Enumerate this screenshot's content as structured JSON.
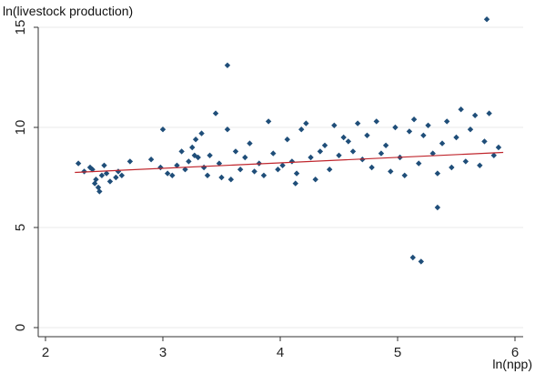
{
  "chart_data": {
    "type": "scatter",
    "ylabel": "ln(livestock production)",
    "xlabel": "ln(npp)",
    "xlim": [
      2,
      6
    ],
    "ylim": [
      0,
      16
    ],
    "x_ticks": [
      2,
      3,
      4,
      5,
      6
    ],
    "y_ticks": [
      0,
      5,
      10,
      15
    ],
    "x_tick_labels": [
      "2",
      "3",
      "4",
      "5",
      "6"
    ],
    "y_tick_labels": [
      "0",
      "5",
      "10",
      "15"
    ],
    "grid": "horizontal",
    "legend": "none",
    "colors": {
      "points": "#1f4e79",
      "fit_line": "#c0262d",
      "grid": "#e9e9e9"
    },
    "fit_line": {
      "x": [
        2.25,
        5.9
      ],
      "y": [
        7.75,
        8.75
      ]
    },
    "series": [
      {
        "marker": "diamond",
        "x": [
          2.28,
          2.33,
          2.38,
          2.4,
          2.42,
          2.43,
          2.45,
          2.46,
          2.48,
          2.5,
          2.52,
          2.55,
          2.6,
          2.62,
          2.65,
          2.72,
          2.9,
          3.0,
          3.04,
          3.08,
          3.12,
          3.16,
          3.19,
          3.22,
          3.25,
          3.28,
          3.3,
          3.33,
          3.35,
          3.38,
          3.4,
          3.45,
          3.48,
          3.5,
          3.55,
          3.58,
          3.62,
          3.66,
          3.7,
          3.74,
          3.78,
          3.82,
          3.86,
          3.9,
          3.94,
          3.98,
          4.02,
          4.06,
          4.1,
          4.14,
          4.18,
          4.22,
          4.26,
          4.3,
          4.34,
          4.38,
          4.42,
          4.46,
          4.5,
          4.54,
          4.58,
          4.62,
          4.66,
          4.7,
          4.74,
          4.78,
          4.82,
          4.86,
          4.9,
          4.94,
          4.98,
          5.02,
          5.06,
          5.1,
          5.14,
          5.18,
          5.22,
          5.26,
          5.3,
          5.34,
          5.38,
          5.42,
          5.46,
          5.5,
          5.54,
          5.58,
          5.62,
          5.66,
          5.7,
          5.74,
          5.78,
          5.82,
          5.86,
          3.55,
          5.76,
          5.13,
          5.2,
          5.34,
          3.27,
          4.13,
          2.98
        ],
        "y": [
          8.2,
          7.8,
          8.0,
          7.9,
          7.2,
          7.4,
          7.0,
          6.8,
          7.6,
          8.1,
          7.7,
          7.3,
          7.5,
          7.8,
          7.6,
          8.3,
          8.4,
          9.9,
          7.7,
          7.6,
          8.1,
          8.8,
          7.9,
          8.3,
          9.0,
          9.4,
          8.5,
          9.7,
          8.0,
          7.6,
          8.6,
          10.7,
          8.2,
          7.5,
          9.9,
          7.4,
          8.8,
          7.9,
          8.5,
          9.2,
          7.8,
          8.2,
          7.6,
          10.3,
          8.7,
          7.9,
          8.1,
          9.4,
          8.3,
          7.7,
          9.9,
          10.2,
          8.5,
          7.4,
          8.8,
          9.1,
          7.9,
          10.1,
          8.6,
          9.5,
          9.3,
          8.8,
          10.2,
          8.4,
          9.6,
          8.0,
          10.3,
          8.7,
          9.1,
          7.8,
          10.0,
          8.5,
          7.6,
          9.8,
          10.4,
          8.2,
          9.6,
          10.1,
          8.7,
          7.7,
          9.2,
          10.3,
          8.0,
          9.5,
          10.9,
          8.3,
          9.9,
          10.6,
          8.1,
          9.3,
          10.7,
          8.6,
          9.0,
          13.1,
          15.4,
          3.5,
          3.3,
          6.0,
          8.6,
          7.2,
          8.0
        ]
      }
    ]
  }
}
